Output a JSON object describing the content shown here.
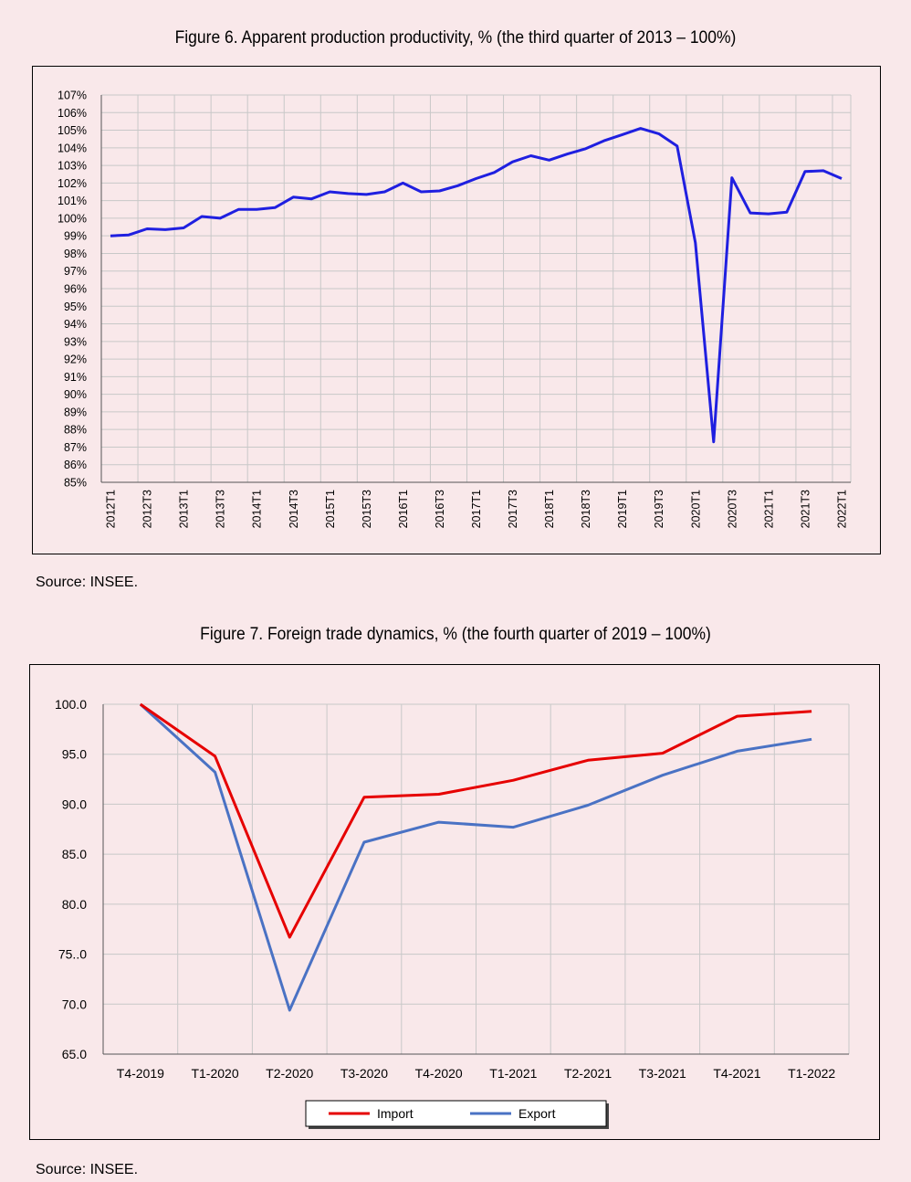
{
  "figures": [
    {
      "title": "Figure 6. Apparent production productivity, % (the third quarter of 2013 – 100%)",
      "source": "Source: INSEE."
    },
    {
      "title": "Figure 7. Foreign trade dynamics, % (the fourth quarter of 2019 – 100%)",
      "source": "Source: INSEE."
    }
  ],
  "colors": {
    "background": "#f9e8ea",
    "grid": "#c8c8c8",
    "fig6_line": "#1f1fe0",
    "import": "#e60000",
    "export": "#4a72c4"
  },
  "chart_data": [
    {
      "type": "line",
      "title": "Figure 6. Apparent production productivity, % (the third quarter of 2013 – 100%)",
      "ylim": [
        85,
        107
      ],
      "y_ticks": [
        "85%",
        "86%",
        "87%",
        "88%",
        "89%",
        "90%",
        "91%",
        "92%",
        "93%",
        "94%",
        "95%",
        "96%",
        "97%",
        "98%",
        "99%",
        "100%",
        "101%",
        "102%",
        "103%",
        "104%",
        "105%",
        "106%",
        "107%"
      ],
      "x_tick_labels": [
        "2012T1",
        "2012T3",
        "2013T1",
        "2013T3",
        "2014T1",
        "2014T3",
        "2015T1",
        "2015T3",
        "2016T1",
        "2016T3",
        "2017T1",
        "2017T3",
        "2018T1",
        "2018T3",
        "2019T1",
        "2019T3",
        "2020T1",
        "2020T3",
        "2021T1",
        "2021T3",
        "2022T1"
      ],
      "grid": true,
      "series": [
        {
          "values": [
            99.0,
            99.05,
            99.4,
            99.35,
            99.45,
            100.1,
            100.0,
            100.5,
            100.5,
            100.6,
            101.2,
            101.1,
            101.5,
            101.4,
            101.35,
            101.5,
            102.0,
            101.5,
            101.55,
            101.85,
            102.25,
            102.6,
            103.2,
            103.55,
            103.3,
            103.65,
            103.95,
            104.4,
            104.75,
            105.1,
            104.8,
            104.1,
            98.6,
            87.3,
            102.3,
            100.3,
            100.25,
            100.35,
            102.65,
            102.7,
            102.25
          ]
        }
      ]
    },
    {
      "type": "line",
      "title": "Figure 7. Foreign trade dynamics, % (the fourth quarter of 2019 – 100%)",
      "categories": [
        "T4-2019",
        "T1-2020",
        "T2-2020",
        "T3-2020",
        "T4-2020",
        "T1-2021",
        "T2-2021",
        "T3-2021",
        "T4-2021",
        "T1-2022"
      ],
      "ylim": [
        65,
        100
      ],
      "y_ticks": [
        "65.0",
        "70.0",
        "75..0",
        "80.0",
        "85.0",
        "90.0",
        "95.0",
        "100.0"
      ],
      "grid": true,
      "legend": "bottom",
      "series": [
        {
          "name": "Import",
          "values": [
            100.0,
            94.8,
            76.7,
            90.7,
            91.0,
            92.4,
            94.4,
            95.1,
            98.8,
            99.3
          ]
        },
        {
          "name": "Export",
          "values": [
            100.0,
            93.2,
            69.4,
            86.2,
            88.2,
            87.7,
            89.9,
            92.9,
            95.3,
            96.5
          ]
        }
      ]
    }
  ]
}
